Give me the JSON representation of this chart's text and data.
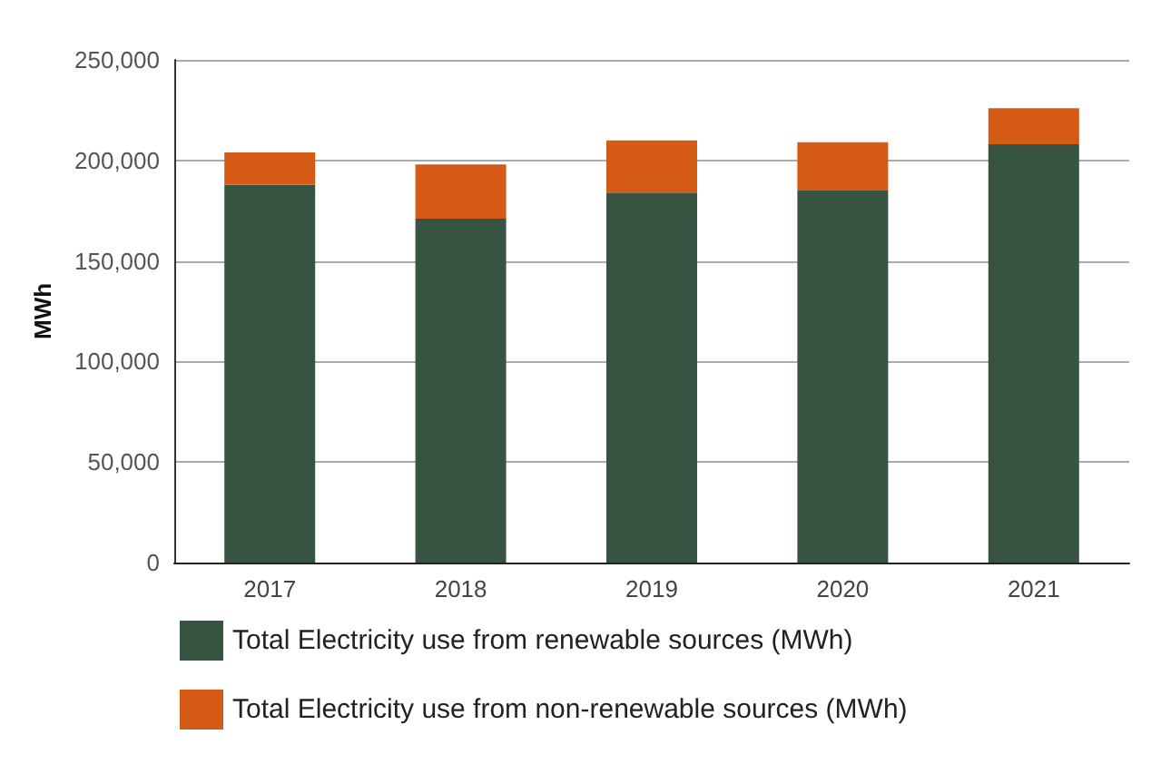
{
  "chart_data": {
    "type": "bar",
    "stacked": true,
    "ylabel": "MWh",
    "categories": [
      "2017",
      "2018",
      "2019",
      "2020",
      "2021"
    ],
    "series": [
      {
        "name": "Total Electricity use from renewable sources (MWh)",
        "color": "#375442",
        "values": [
          188000,
          171000,
          184000,
          185000,
          208000
        ]
      },
      {
        "name": "Total Electricity use from non-renewable sources (MWh)",
        "color": "#d55a16",
        "values": [
          16000,
          27000,
          26000,
          24000,
          18000
        ]
      }
    ],
    "ylim": [
      0,
      250000
    ],
    "yticks": [
      0,
      {
        "value": 50000,
        "label": "50,000"
      },
      {
        "value": 100000,
        "label": "100,000"
      },
      {
        "value": 150000,
        "label": "150,000"
      },
      {
        "value": 200000,
        "label": "200,000"
      },
      {
        "value": 250000,
        "label": "250,000"
      }
    ],
    "grid": "y",
    "legend": "bottom"
  }
}
